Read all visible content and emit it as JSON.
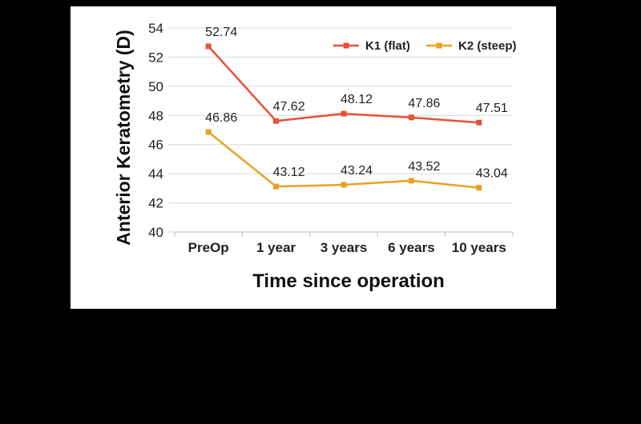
{
  "chart_data": {
    "type": "line",
    "xlabel": "Time since operation",
    "ylabel": "Anterior Keratometry (D)",
    "categories": [
      "PreOp",
      "1 year",
      "3 years",
      "6 years",
      "10 years"
    ],
    "ylim": [
      40,
      54
    ],
    "yticks": [
      "40",
      "42",
      "44",
      "46",
      "48",
      "50",
      "52",
      "54"
    ],
    "grid": "horizontal",
    "legend_position": "top-right",
    "series": [
      {
        "name": "K1 (flat)",
        "color": "#e8503a",
        "values": [
          52.74,
          47.62,
          48.12,
          47.86,
          47.51
        ],
        "labels": [
          "52.74",
          "47.62",
          "48.12",
          "47.86",
          "47.51"
        ]
      },
      {
        "name": "K2 (steep)",
        "color": "#eaa121",
        "values": [
          46.86,
          43.12,
          43.24,
          43.52,
          43.04
        ],
        "labels": [
          "46.86",
          "43.12",
          "43.24",
          "43.52",
          "43.04"
        ]
      }
    ]
  }
}
